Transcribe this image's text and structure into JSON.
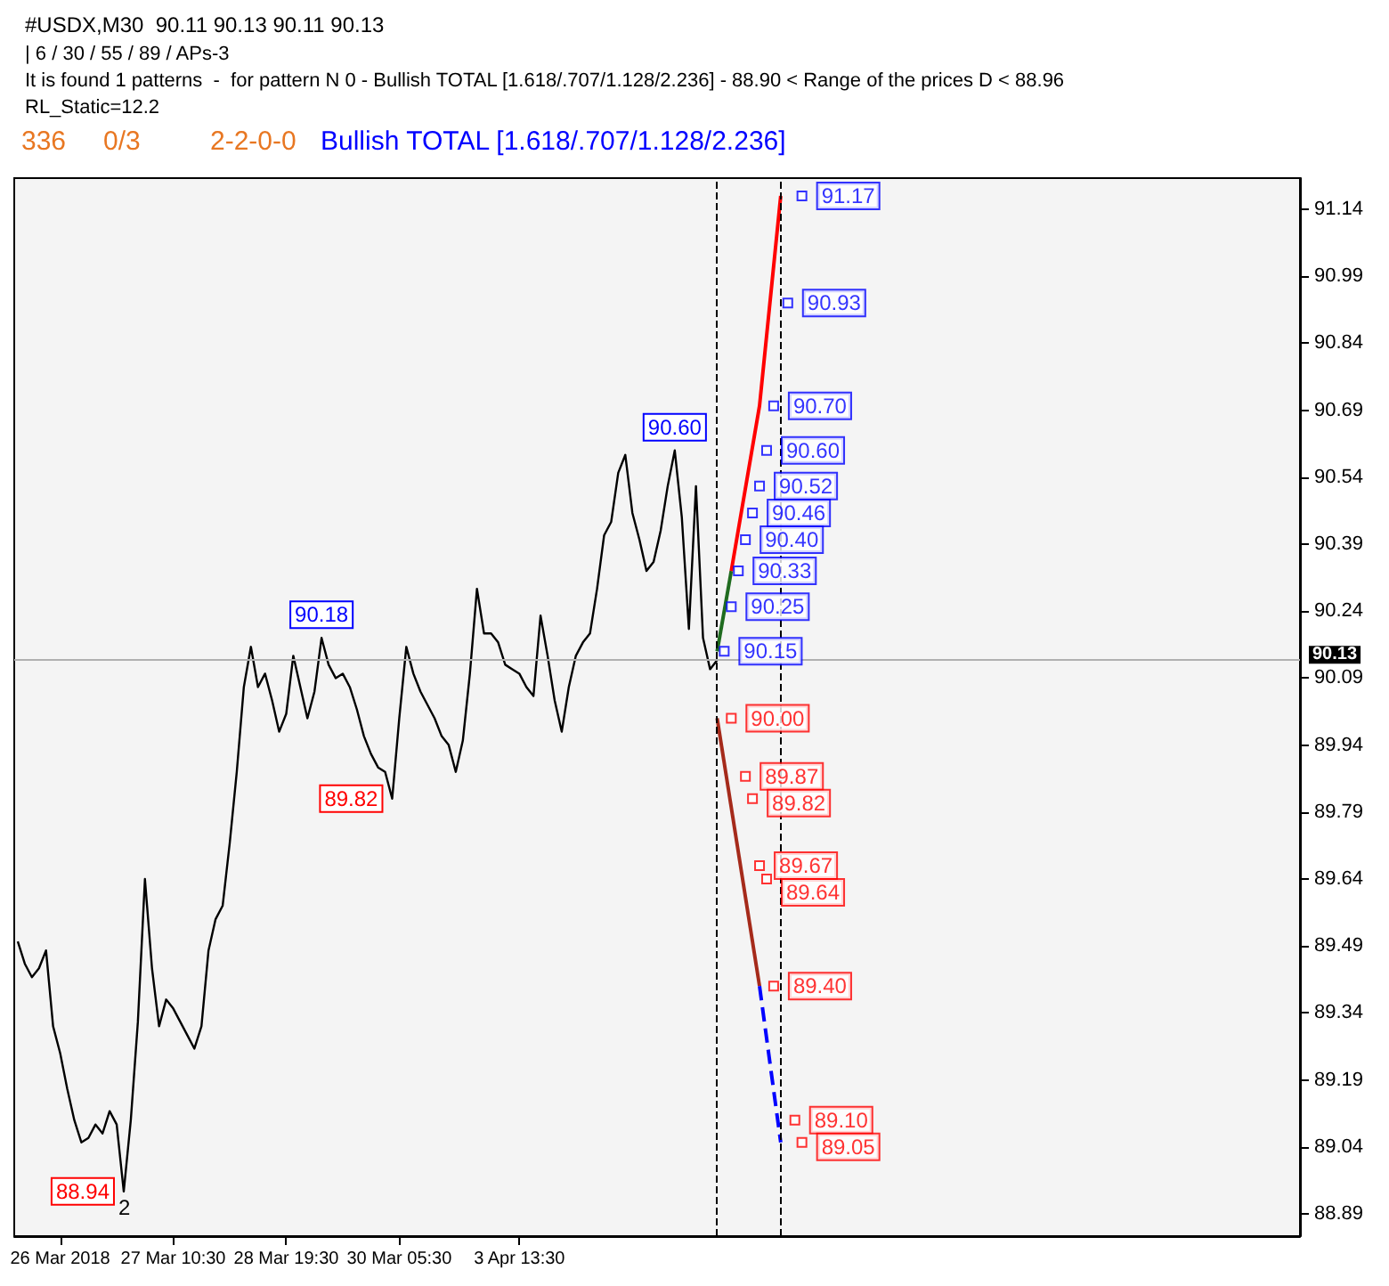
{
  "chart_data": {
    "type": "line",
    "title": "#USDX,M30  90.11 90.13 90.11 90.13",
    "categories": [
      null,
      null,
      null,
      null,
      null,
      null,
      "26 Mar 2018",
      null,
      null,
      null,
      null,
      null,
      null,
      null,
      null,
      null,
      null,
      null,
      null,
      null,
      null,
      null,
      "27 Mar 10:30",
      null,
      null,
      null,
      null,
      null,
      null,
      null,
      null,
      null,
      null,
      null,
      null,
      null,
      null,
      null,
      "28 Mar 19:30",
      null,
      null,
      null,
      null,
      null,
      null,
      null,
      null,
      null,
      null,
      null,
      null,
      null,
      null,
      null,
      "30 Mar 05:30",
      null,
      null,
      null,
      null,
      null,
      null,
      null,
      null,
      null,
      null,
      null,
      null,
      null,
      null,
      null,
      null,
      "3 Apr 13:30",
      null,
      null,
      null,
      null,
      null,
      null,
      null,
      null,
      null,
      null,
      null,
      null,
      null,
      null,
      null,
      null,
      null,
      null,
      null,
      null,
      null,
      null,
      null,
      null,
      null,
      null,
      null,
      null,
      null,
      null,
      null,
      null,
      null,
      null,
      null,
      null,
      null,
      null,
      null,
      null,
      null,
      null,
      null,
      null,
      null,
      null,
      null,
      null,
      null,
      null,
      null,
      null,
      null,
      null,
      null,
      null,
      null,
      null,
      null,
      null,
      null,
      null,
      null,
      null,
      null,
      null,
      null,
      null,
      null,
      null,
      null,
      null,
      null,
      null,
      null,
      null,
      null,
      null,
      null,
      null,
      null,
      null,
      null,
      null,
      null,
      null,
      null,
      null,
      null,
      null,
      null,
      null,
      null,
      null,
      null,
      null,
      null,
      null,
      null,
      null,
      null,
      null,
      null,
      null,
      null,
      null,
      null,
      null,
      null,
      null
    ],
    "ylim": [
      88.84,
      91.21
    ],
    "yticks": [
      88.89,
      89.04,
      89.19,
      89.34,
      89.49,
      89.64,
      89.79,
      89.94,
      90.09,
      90.24,
      90.39,
      90.54,
      90.69,
      90.84,
      90.99,
      91.14
    ],
    "marker": "none",
    "series": [
      {
        "color": "#000000",
        "line_style": "solid",
        "values": [
          89.5,
          89.45,
          89.42,
          89.44,
          89.48,
          89.31,
          89.25,
          89.17,
          89.1,
          89.05,
          89.06,
          89.09,
          89.07,
          89.12,
          89.09,
          88.94,
          89.1,
          89.32,
          89.64,
          89.44,
          89.31,
          89.37,
          89.35,
          89.32,
          89.29,
          89.26,
          89.31,
          89.48,
          89.55,
          89.58,
          89.72,
          89.88,
          90.07,
          90.16,
          90.07,
          90.1,
          90.04,
          89.97,
          90.01,
          90.14,
          90.07,
          90.0,
          90.06,
          90.18,
          90.12,
          90.09,
          90.1,
          90.07,
          90.02,
          89.96,
          89.92,
          89.89,
          89.88,
          89.82,
          90.0,
          90.16,
          90.1,
          90.06,
          90.03,
          90.0,
          89.96,
          89.94,
          89.88,
          89.95,
          90.1,
          90.29,
          90.19,
          90.19,
          90.17,
          90.12,
          90.11,
          90.1,
          90.07,
          90.05,
          90.23,
          90.14,
          90.04,
          89.97,
          90.07,
          90.14,
          90.17,
          90.19,
          90.29,
          90.41,
          90.44,
          90.55,
          90.59,
          90.46,
          90.4,
          90.33,
          90.35,
          90.42,
          90.52,
          90.6,
          90.45,
          90.2,
          90.52,
          90.18,
          90.11,
          90.13,
          null,
          null,
          null,
          null,
          null,
          null,
          null,
          null,
          null,
          null,
          null,
          null,
          null,
          null,
          null,
          null,
          null,
          null,
          null,
          null,
          null,
          null,
          null,
          null,
          null,
          null,
          null,
          null,
          null,
          null,
          null,
          null,
          null,
          null,
          null,
          null,
          null,
          null,
          null,
          null,
          null,
          null,
          null,
          null,
          null,
          null,
          null,
          null,
          null,
          null,
          null,
          null,
          null,
          null,
          null,
          null,
          null,
          null,
          null,
          null,
          null,
          null,
          null,
          null,
          null,
          null,
          null,
          null,
          null,
          null,
          null,
          null,
          null,
          null,
          null,
          null,
          null,
          null,
          null,
          null,
          null,
          null
        ],
        "value_labels": [
          null,
          null,
          null,
          null,
          null,
          null,
          null,
          null,
          null,
          null,
          null,
          null,
          null,
          null,
          null,
          "88.94",
          null,
          null,
          null,
          null,
          null,
          null,
          null,
          null,
          null,
          null,
          null,
          null,
          null,
          null,
          null,
          null,
          null,
          null,
          null,
          null,
          null,
          null,
          null,
          null,
          null,
          null,
          null,
          "90.18",
          null,
          null,
          null,
          null,
          null,
          null,
          null,
          null,
          null,
          "89.82",
          null,
          null,
          null,
          null,
          null,
          null,
          null,
          null,
          null,
          null,
          null,
          null,
          null,
          null,
          null,
          null,
          null,
          null,
          null,
          null,
          null,
          null,
          null,
          null,
          null,
          null,
          null,
          null,
          null,
          null,
          null,
          null,
          null,
          null,
          null,
          null,
          null,
          null,
          null,
          "90.60",
          null,
          null,
          null,
          null,
          null,
          null,
          null,
          null,
          null,
          null,
          null,
          null,
          null,
          null,
          null,
          null,
          null,
          null,
          null,
          null,
          null,
          null,
          null,
          null,
          null,
          null,
          null,
          null,
          null,
          null,
          null,
          null,
          null,
          null,
          null,
          null,
          null,
          null,
          null,
          null,
          null,
          null,
          null,
          null,
          null,
          null,
          null,
          null,
          null,
          null,
          null,
          null,
          null,
          null,
          null,
          null,
          null,
          null,
          null,
          null,
          null,
          null,
          null,
          null,
          null,
          null,
          null,
          null,
          null,
          null,
          null,
          null,
          null,
          null,
          null,
          null,
          null,
          null,
          null,
          null,
          null,
          null,
          null,
          null,
          null,
          null,
          null,
          null
        ]
      },
      {
        "color": "#1f6b1f",
        "line_style": "solid",
        "values": [
          null,
          null,
          null,
          null,
          null,
          null,
          null,
          null,
          null,
          null,
          null,
          null,
          null,
          null,
          null,
          null,
          null,
          null,
          null,
          null,
          null,
          null,
          null,
          null,
          null,
          null,
          null,
          null,
          null,
          null,
          null,
          null,
          null,
          null,
          null,
          null,
          null,
          null,
          null,
          null,
          null,
          null,
          null,
          null,
          null,
          null,
          null,
          null,
          null,
          null,
          null,
          null,
          null,
          null,
          null,
          null,
          null,
          null,
          null,
          null,
          null,
          null,
          null,
          null,
          null,
          null,
          null,
          null,
          null,
          null,
          null,
          null,
          null,
          null,
          null,
          null,
          null,
          null,
          null,
          null,
          null,
          null,
          null,
          null,
          null,
          null,
          null,
          null,
          null,
          null,
          null,
          null,
          null,
          null,
          null,
          null,
          null,
          null,
          null,
          90.15,
          null,
          90.33,
          null,
          null,
          null,
          null,
          null,
          null,
          null,
          null,
          null,
          null,
          null,
          null,
          null,
          null,
          null,
          null,
          null,
          null,
          null,
          null,
          null,
          null,
          null,
          null,
          null,
          null,
          null,
          null,
          null,
          null,
          null,
          null,
          null,
          null,
          null,
          null,
          null,
          null,
          null,
          null,
          null,
          null,
          null,
          null,
          null,
          null,
          null,
          null,
          null,
          null,
          null,
          null,
          null,
          null,
          null,
          null,
          null,
          null,
          null,
          null,
          null,
          null,
          null,
          null,
          null,
          null,
          null,
          null,
          null,
          null,
          null,
          null,
          null,
          null,
          null,
          null,
          null,
          null,
          null,
          null
        ]
      },
      {
        "color": "#ff0000",
        "line_style": "solid",
        "values": [
          null,
          null,
          null,
          null,
          null,
          null,
          null,
          null,
          null,
          null,
          null,
          null,
          null,
          null,
          null,
          null,
          null,
          null,
          null,
          null,
          null,
          null,
          null,
          null,
          null,
          null,
          null,
          null,
          null,
          null,
          null,
          null,
          null,
          null,
          null,
          null,
          null,
          null,
          null,
          null,
          null,
          null,
          null,
          null,
          null,
          null,
          null,
          null,
          null,
          null,
          null,
          null,
          null,
          null,
          null,
          null,
          null,
          null,
          null,
          null,
          null,
          null,
          null,
          null,
          null,
          null,
          null,
          null,
          null,
          null,
          null,
          null,
          null,
          null,
          null,
          null,
          null,
          null,
          null,
          null,
          null,
          null,
          null,
          null,
          null,
          null,
          null,
          null,
          null,
          null,
          null,
          null,
          null,
          null,
          null,
          null,
          null,
          null,
          null,
          null,
          null,
          90.33,
          null,
          null,
          null,
          90.7,
          null,
          null,
          91.17,
          null,
          null,
          null,
          null,
          null,
          null,
          null,
          null,
          null,
          null,
          null,
          null,
          null,
          null,
          null,
          null,
          null,
          null,
          null,
          null,
          null,
          null,
          null,
          null,
          null,
          null,
          null,
          null,
          null,
          null,
          null,
          null,
          null,
          null,
          null,
          null,
          null,
          null,
          null,
          null,
          null,
          null,
          null,
          null,
          null,
          null,
          null,
          null,
          null,
          null,
          null,
          null,
          null,
          null,
          null,
          null,
          null,
          null,
          null,
          null,
          null,
          null,
          null,
          null,
          null,
          null,
          null,
          null,
          null,
          null,
          null,
          null,
          null
        ]
      },
      {
        "color": "#a52a1a",
        "line_style": "solid",
        "values": [
          null,
          null,
          null,
          null,
          null,
          null,
          null,
          null,
          null,
          null,
          null,
          null,
          null,
          null,
          null,
          null,
          null,
          null,
          null,
          null,
          null,
          null,
          null,
          null,
          null,
          null,
          null,
          null,
          null,
          null,
          null,
          null,
          null,
          null,
          null,
          null,
          null,
          null,
          null,
          null,
          null,
          null,
          null,
          null,
          null,
          null,
          null,
          null,
          null,
          null,
          null,
          null,
          null,
          null,
          null,
          null,
          null,
          null,
          null,
          null,
          null,
          null,
          null,
          null,
          null,
          null,
          null,
          null,
          null,
          null,
          null,
          null,
          null,
          null,
          null,
          null,
          null,
          null,
          null,
          null,
          null,
          null,
          null,
          null,
          null,
          null,
          null,
          null,
          null,
          null,
          null,
          null,
          null,
          null,
          null,
          null,
          null,
          null,
          null,
          90.0,
          null,
          null,
          null,
          null,
          null,
          89.4,
          null,
          null,
          null,
          null,
          null,
          null,
          null,
          null,
          null,
          null,
          null,
          null,
          null,
          null,
          null,
          null,
          null,
          null,
          null,
          null,
          null,
          null,
          null,
          null,
          null,
          null,
          null,
          null,
          null,
          null,
          null,
          null,
          null,
          null,
          null,
          null,
          null,
          null,
          null,
          null,
          null,
          null,
          null,
          null,
          null,
          null,
          null,
          null,
          null,
          null,
          null,
          null,
          null,
          null,
          null,
          null,
          null,
          null,
          null,
          null,
          null,
          null,
          null,
          null,
          null,
          null,
          null,
          null,
          null,
          null,
          null,
          null,
          null,
          null,
          null,
          null
        ]
      },
      {
        "color": "#0000ff",
        "line_style": "dashed",
        "values": [
          null,
          null,
          null,
          null,
          null,
          null,
          null,
          null,
          null,
          null,
          null,
          null,
          null,
          null,
          null,
          null,
          null,
          null,
          null,
          null,
          null,
          null,
          null,
          null,
          null,
          null,
          null,
          null,
          null,
          null,
          null,
          null,
          null,
          null,
          null,
          null,
          null,
          null,
          null,
          null,
          null,
          null,
          null,
          null,
          null,
          null,
          null,
          null,
          null,
          null,
          null,
          null,
          null,
          null,
          null,
          null,
          null,
          null,
          null,
          null,
          null,
          null,
          null,
          null,
          null,
          null,
          null,
          null,
          null,
          null,
          null,
          null,
          null,
          null,
          null,
          null,
          null,
          null,
          null,
          null,
          null,
          null,
          null,
          null,
          null,
          null,
          null,
          null,
          null,
          null,
          null,
          null,
          null,
          null,
          null,
          null,
          null,
          null,
          null,
          null,
          null,
          null,
          null,
          null,
          null,
          89.4,
          null,
          null,
          89.05,
          null,
          null,
          null,
          null,
          null,
          null,
          null,
          null,
          null,
          null,
          null,
          null,
          null,
          null,
          null,
          null,
          null,
          null,
          null,
          null,
          null,
          null,
          null,
          null,
          null,
          null,
          null,
          null,
          null,
          null,
          null,
          null,
          null,
          null,
          null,
          null,
          null,
          null,
          null,
          null,
          null,
          null,
          null,
          null,
          null,
          null,
          null,
          null,
          null,
          null,
          null,
          null,
          null,
          null,
          null,
          null,
          null,
          null,
          null,
          null,
          null,
          null,
          null,
          null,
          null,
          null,
          null,
          null,
          null,
          null,
          null,
          null,
          null
        ]
      },
      {
        "type": "scatter",
        "marker": "square",
        "color": "#0000ff",
        "value_labels": [
          null,
          null,
          null,
          null,
          null,
          null,
          null,
          null,
          null,
          null,
          null,
          null,
          null,
          null,
          null,
          null,
          null,
          null,
          null,
          null,
          null,
          null,
          null,
          null,
          null,
          null,
          null,
          null,
          null,
          null,
          null,
          null,
          null,
          null,
          null,
          null,
          null,
          null,
          null,
          null,
          null,
          null,
          null,
          null,
          null,
          null,
          null,
          null,
          null,
          null,
          null,
          null,
          null,
          null,
          null,
          null,
          null,
          null,
          null,
          null,
          null,
          null,
          null,
          null,
          null,
          null,
          null,
          null,
          null,
          null,
          null,
          null,
          null,
          null,
          null,
          null,
          null,
          null,
          null,
          null,
          null,
          null,
          null,
          null,
          null,
          null,
          null,
          null,
          null,
          null,
          null,
          null,
          null,
          null,
          null,
          null,
          null,
          null,
          null,
          null,
          "90.15",
          "90.25",
          "90.33",
          "90.40",
          "90.46",
          "90.52",
          "90.60",
          "90.70",
          null,
          "90.93",
          null,
          "91.17",
          null,
          null,
          null,
          null,
          null,
          null,
          null,
          null,
          null,
          null,
          null,
          null,
          null,
          null,
          null,
          null,
          null,
          null,
          null,
          null,
          null,
          null,
          null,
          null,
          null,
          null,
          null,
          null,
          null,
          null,
          null,
          null,
          null,
          null,
          null,
          null,
          null,
          null,
          null,
          null,
          null,
          null,
          null,
          null,
          null,
          null,
          null,
          null,
          null,
          null,
          null,
          null,
          null,
          null,
          null,
          null,
          null,
          null,
          null,
          null,
          null,
          null,
          null,
          null,
          null,
          null,
          null,
          null,
          null,
          null
        ],
        "values": [
          null,
          null,
          null,
          null,
          null,
          null,
          null,
          null,
          null,
          null,
          null,
          null,
          null,
          null,
          null,
          null,
          null,
          null,
          null,
          null,
          null,
          null,
          null,
          null,
          null,
          null,
          null,
          null,
          null,
          null,
          null,
          null,
          null,
          null,
          null,
          null,
          null,
          null,
          null,
          null,
          null,
          null,
          null,
          null,
          null,
          null,
          null,
          null,
          null,
          null,
          null,
          null,
          null,
          null,
          null,
          null,
          null,
          null,
          null,
          null,
          null,
          null,
          null,
          null,
          null,
          null,
          null,
          null,
          null,
          null,
          null,
          null,
          null,
          null,
          null,
          null,
          null,
          null,
          null,
          null,
          null,
          null,
          null,
          null,
          null,
          null,
          null,
          null,
          null,
          null,
          null,
          null,
          null,
          null,
          null,
          null,
          null,
          null,
          null,
          null,
          90.15,
          90.25,
          90.33,
          90.4,
          90.46,
          90.52,
          90.6,
          90.7,
          null,
          90.93,
          null,
          91.17,
          null,
          null,
          null,
          null,
          null,
          null,
          null,
          null,
          null,
          null,
          null,
          null,
          null,
          null,
          null,
          null,
          null,
          null,
          null,
          null,
          null,
          null,
          null,
          null,
          null,
          null,
          null,
          null,
          null,
          null,
          null,
          null,
          null,
          null,
          null,
          null,
          null,
          null,
          null,
          null,
          null,
          null,
          null,
          null,
          null,
          null,
          null,
          null,
          null,
          null,
          null,
          null,
          null,
          null,
          null,
          null,
          null,
          null,
          null,
          null,
          null,
          null,
          null,
          null,
          null,
          null,
          null,
          null,
          null,
          null
        ]
      },
      {
        "type": "scatter",
        "marker": "square",
        "color": "#ff0000",
        "value_labels": [
          null,
          null,
          null,
          null,
          null,
          null,
          null,
          null,
          null,
          null,
          null,
          null,
          null,
          null,
          null,
          null,
          null,
          null,
          null,
          null,
          null,
          null,
          null,
          null,
          null,
          null,
          null,
          null,
          null,
          null,
          null,
          null,
          null,
          null,
          null,
          null,
          null,
          null,
          null,
          null,
          null,
          null,
          null,
          null,
          null,
          null,
          null,
          null,
          null,
          null,
          null,
          null,
          null,
          null,
          null,
          null,
          null,
          null,
          null,
          null,
          null,
          null,
          null,
          null,
          null,
          null,
          null,
          null,
          null,
          null,
          null,
          null,
          null,
          null,
          null,
          null,
          null,
          null,
          null,
          null,
          null,
          null,
          null,
          null,
          null,
          null,
          null,
          null,
          null,
          null,
          null,
          null,
          null,
          null,
          null,
          null,
          null,
          null,
          null,
          null,
          null,
          "90.00",
          null,
          "89.87",
          "89.82",
          "89.67",
          "89.64",
          "89.40",
          null,
          null,
          "89.10",
          "89.05",
          null,
          null,
          null,
          null,
          null,
          null,
          null,
          null,
          null,
          null,
          null,
          null,
          null,
          null,
          null,
          null,
          null,
          null,
          null,
          null,
          null,
          null,
          null,
          null,
          null,
          null,
          null,
          null,
          null,
          null,
          null,
          null,
          null,
          null,
          null,
          null,
          null,
          null,
          null,
          null,
          null,
          null,
          null,
          null,
          null,
          null,
          null,
          null,
          null,
          null,
          null,
          null,
          null,
          null,
          null,
          null,
          null,
          null,
          null,
          null,
          null,
          null,
          null,
          null,
          null,
          null,
          null,
          null,
          null,
          null
        ],
        "values": [
          null,
          null,
          null,
          null,
          null,
          null,
          null,
          null,
          null,
          null,
          null,
          null,
          null,
          null,
          null,
          null,
          null,
          null,
          null,
          null,
          null,
          null,
          null,
          null,
          null,
          null,
          null,
          null,
          null,
          null,
          null,
          null,
          null,
          null,
          null,
          null,
          null,
          null,
          null,
          null,
          null,
          null,
          null,
          null,
          null,
          null,
          null,
          null,
          null,
          null,
          null,
          null,
          null,
          null,
          null,
          null,
          null,
          null,
          null,
          null,
          null,
          null,
          null,
          null,
          null,
          null,
          null,
          null,
          null,
          null,
          null,
          null,
          null,
          null,
          null,
          null,
          null,
          null,
          null,
          null,
          null,
          null,
          null,
          null,
          null,
          null,
          null,
          null,
          null,
          null,
          null,
          null,
          null,
          null,
          null,
          null,
          null,
          null,
          null,
          null,
          null,
          90.0,
          null,
          89.87,
          89.82,
          89.67,
          89.64,
          89.4,
          null,
          null,
          89.1,
          89.05,
          null,
          null,
          null,
          null,
          null,
          null,
          null,
          null,
          null,
          null,
          null,
          null,
          null,
          null,
          null,
          null,
          null,
          null,
          null,
          null,
          null,
          null,
          null,
          null,
          null,
          null,
          null,
          null,
          null,
          null,
          null,
          null,
          null,
          null,
          null,
          null,
          null,
          null,
          null,
          null,
          null,
          null,
          null,
          null,
          null,
          null,
          null,
          null,
          null,
          null,
          null,
          null,
          null,
          null,
          null,
          null,
          null,
          null,
          null,
          null,
          null,
          null,
          null,
          null,
          null,
          null,
          null,
          null,
          null,
          null
        ]
      }
    ],
    "ref_lines": [
      {
        "axis": "y",
        "value": 90.13,
        "label": "90.13",
        "color": "#b0b0b0",
        "line_style": "solid"
      }
    ],
    "annotations": [
      "| 6 / 30 / 55 / 89 / APs-3",
      "It is found 1 patterns  -  for pattern N 0 - Bullish TOTAL [1.618/.707/1.128/2.236] - 88.90 < Range of the prices D < 88.96",
      "RL_Static=12.2",
      "336",
      "0/3",
      "2-2-0-0",
      "Bullish TOTAL [1.618/.707/1.128/2.236]",
      "2"
    ]
  }
}
